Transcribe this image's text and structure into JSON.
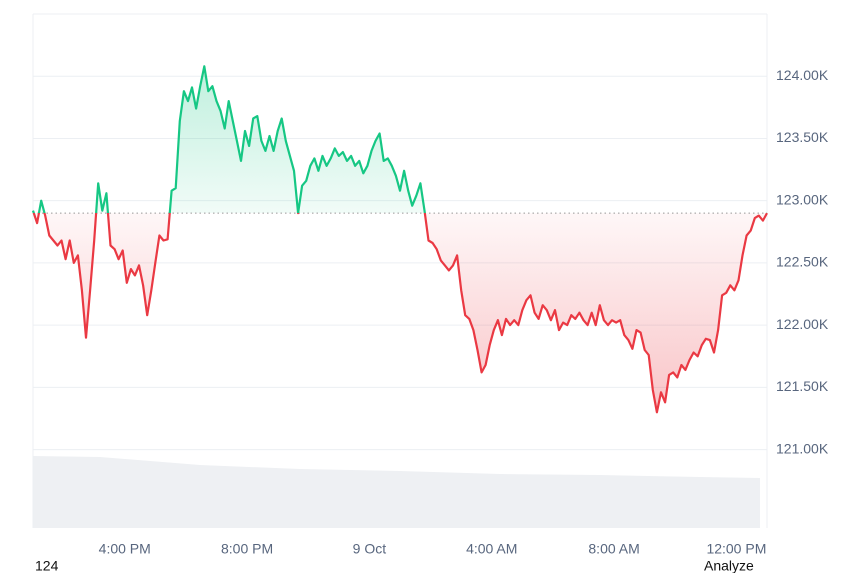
{
  "chart_data": {
    "type": "line",
    "x": [
      780,
      788,
      796,
      804,
      812,
      820,
      828,
      836,
      844,
      852,
      860,
      868,
      876,
      884,
      892,
      900,
      908,
      916,
      924,
      932,
      940,
      948,
      956,
      964,
      972,
      980,
      988,
      996,
      1004,
      1012,
      1020,
      1028,
      1036,
      1044,
      1052,
      1060,
      1068,
      1076,
      1084,
      1092,
      1100,
      1108,
      1116,
      1124,
      1132,
      1140,
      1148,
      1156,
      1164,
      1172,
      1180,
      1188,
      1196,
      1204,
      1212,
      1220,
      1228,
      1236,
      1244,
      1252,
      1260,
      1268,
      1276,
      1284,
      1292,
      1300,
      1308,
      1316,
      1324,
      1332,
      1340,
      1348,
      1356,
      1364,
      1372,
      1380,
      1388,
      1396,
      1404,
      1412,
      1420,
      1428,
      1436,
      1444,
      1452,
      1460,
      1468,
      1476,
      1484,
      1492,
      1500,
      1508,
      1516,
      1524,
      1532,
      1540,
      1548,
      1556,
      1564,
      1572,
      1580,
      1588,
      1596,
      1604,
      1612,
      1620,
      1628,
      1636,
      1644,
      1652,
      1660,
      1668,
      1676,
      1684,
      1692,
      1700,
      1708,
      1716,
      1724,
      1732,
      1740,
      1748,
      1756,
      1764,
      1772,
      1780,
      1788,
      1796,
      1804,
      1812,
      1820,
      1828,
      1836,
      1844,
      1852,
      1860,
      1868,
      1876,
      1884,
      1892,
      1900,
      1908,
      1916,
      1924,
      1932,
      1940,
      1948,
      1956,
      1964,
      1972,
      1980,
      1988,
      1996,
      2004,
      2012,
      2020,
      2028,
      2036,
      2044,
      2052,
      2060,
      2068,
      2076,
      2084,
      2092,
      2100,
      2108,
      2116,
      2124,
      2132,
      2140,
      2148,
      2156,
      2164,
      2172,
      2180,
      2188,
      2196,
      2204,
      2212,
      2220
    ],
    "values": [
      122.92,
      122.82,
      123.0,
      122.88,
      122.72,
      122.68,
      122.64,
      122.68,
      122.53,
      122.68,
      122.5,
      122.56,
      122.28,
      121.9,
      122.28,
      122.68,
      123.14,
      122.92,
      123.06,
      122.64,
      122.61,
      122.53,
      122.6,
      122.34,
      122.45,
      122.4,
      122.48,
      122.32,
      122.08,
      122.28,
      122.5,
      122.72,
      122.68,
      122.69,
      123.08,
      123.1,
      123.64,
      123.88,
      123.8,
      123.91,
      123.74,
      123.92,
      124.08,
      123.88,
      123.92,
      123.8,
      123.72,
      123.58,
      123.8,
      123.64,
      123.48,
      123.32,
      123.56,
      123.44,
      123.66,
      123.68,
      123.48,
      123.4,
      123.52,
      123.4,
      123.56,
      123.66,
      123.48,
      123.36,
      123.24,
      122.9,
      123.12,
      123.16,
      123.28,
      123.34,
      123.24,
      123.36,
      123.28,
      123.34,
      123.42,
      123.36,
      123.39,
      123.32,
      123.36,
      123.28,
      123.32,
      123.22,
      123.28,
      123.4,
      123.48,
      123.54,
      123.32,
      123.34,
      123.28,
      123.2,
      123.08,
      123.24,
      123.08,
      122.96,
      123.04,
      123.14,
      122.92,
      122.68,
      122.66,
      122.61,
      122.52,
      122.48,
      122.44,
      122.48,
      122.56,
      122.28,
      122.08,
      122.05,
      121.96,
      121.8,
      121.62,
      121.68,
      121.84,
      121.96,
      122.04,
      121.92,
      122.05,
      122.0,
      122.04,
      122.0,
      122.12,
      122.2,
      122.24,
      122.1,
      122.05,
      122.16,
      122.12,
      122.04,
      122.12,
      121.96,
      122.02,
      122.0,
      122.08,
      122.05,
      122.1,
      122.04,
      122.0,
      122.1,
      122.0,
      122.16,
      122.04,
      122.0,
      122.04,
      122.02,
      122.04,
      121.92,
      121.88,
      121.81,
      121.96,
      121.94,
      121.8,
      121.76,
      121.48,
      121.3,
      121.46,
      121.38,
      121.6,
      121.62,
      121.58,
      121.68,
      121.64,
      121.72,
      121.78,
      121.75,
      121.84,
      121.89,
      121.88,
      121.78,
      121.96,
      122.24,
      122.26,
      122.32,
      122.28,
      122.36,
      122.56,
      122.72,
      122.76,
      122.86,
      122.88,
      122.84,
      122.9
    ],
    "baseline": 122.9,
    "color_up": "#16c784",
    "color_down": "#ea3943",
    "xlim": [
      780,
      2220
    ],
    "xticks": [
      {
        "value": 960,
        "label": "4:00 PM"
      },
      {
        "value": 1200,
        "label": "8:00 PM"
      },
      {
        "value": 1440,
        "label": "9 Oct"
      },
      {
        "value": 1680,
        "label": "4:00 AM"
      },
      {
        "value": 1920,
        "label": "8:00 AM"
      },
      {
        "value": 2160,
        "label": "12:00 PM"
      }
    ],
    "ylim": [
      120.37,
      124.5
    ],
    "yticks": [
      {
        "value": 121,
        "label": "121.00K"
      },
      {
        "value": 121.5,
        "label": "121.50K"
      },
      {
        "value": 122,
        "label": "122.00K"
      },
      {
        "value": 122.5,
        "label": "122.50K"
      },
      {
        "value": 123,
        "label": "123.00K"
      },
      {
        "value": 123.5,
        "label": "123.50K"
      },
      {
        "value": 124,
        "label": "124.00K"
      }
    ],
    "grid": true,
    "footer_left": "124",
    "footer_right": "Analyze"
  }
}
